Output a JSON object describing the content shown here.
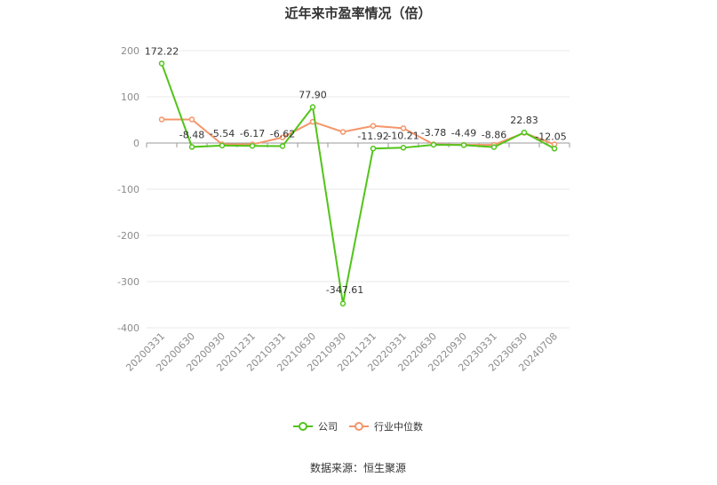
{
  "chart_data": {
    "type": "line",
    "title": "近年来市盈率情况（倍）",
    "categories": [
      "20200331",
      "20200630",
      "20200930",
      "20201231",
      "20210331",
      "20210630",
      "20210930",
      "20211231",
      "20220331",
      "20220630",
      "20220930",
      "20230331",
      "20230630",
      "20240708"
    ],
    "series": [
      {
        "name": "公司",
        "color": "#52c41a",
        "values": [
          172.22,
          -8.48,
          -5.54,
          -6.17,
          -6.62,
          77.9,
          -347.61,
          -11.92,
          -10.21,
          -3.78,
          -4.49,
          -8.86,
          22.83,
          -12.05
        ],
        "labels": [
          "172.22",
          "-8.48",
          "-5.54",
          "-6.17",
          "-6.62",
          "77.90",
          "-347.61",
          "-11.92",
          "-10.21",
          "-3.78",
          "-4.49",
          "-8.86",
          "22.83",
          "-12.05"
        ]
      },
      {
        "name": "行业中位数",
        "color": "#f4956a",
        "values": [
          51,
          51,
          -3,
          -3,
          12,
          46,
          24,
          37,
          32,
          -3,
          -4,
          -4,
          22,
          -3
        ]
      }
    ],
    "yticks": [
      200,
      100,
      0,
      -100,
      -200,
      -300,
      -400
    ],
    "ytick_labels": [
      "200",
      "100",
      "0",
      "-100",
      "-200",
      "-300",
      "-400"
    ],
    "ylim": [
      -400,
      200
    ],
    "grid": true,
    "legend_position": "bottom-center"
  },
  "source_text": "数据来源：恒生聚源"
}
